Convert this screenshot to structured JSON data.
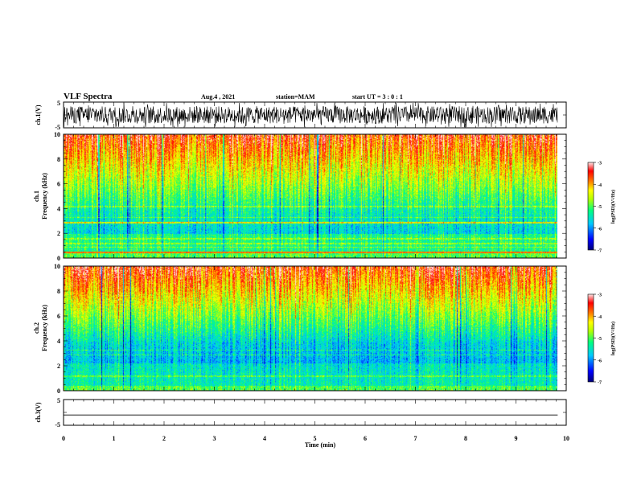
{
  "chart_data": {
    "type": "heatmap",
    "title": "VLF Spectra",
    "header": {
      "date": "Aug.4 , 2021",
      "station": "station=MAM",
      "start_ut": "start UT = 3 : 0 : 1"
    },
    "x_axis": {
      "label": "Time (min)",
      "range": [
        0,
        10
      ],
      "ticks": [
        0,
        1,
        2,
        3,
        4,
        5,
        6,
        7,
        8,
        9,
        10
      ],
      "tick_labels": [
        "0",
        "1",
        "2",
        "3",
        "4",
        "5",
        "6",
        "7",
        "8",
        "9",
        "10"
      ],
      "data_end": 9.83
    },
    "panels": [
      {
        "id": "ch1-waveform",
        "type": "line",
        "ylabel": "ch.1(V)",
        "ylim": [
          -5,
          5
        ],
        "tick_labels": [
          "5",
          "-5"
        ],
        "description_values": {
          "baseline": 0,
          "amplitude": 4.5
        }
      },
      {
        "id": "ch1-spectrogram",
        "type": "heatmap",
        "ylabel_line1": "ch.1",
        "ylabel_line2": "Frequency (kHz)",
        "ylim": [
          0,
          10
        ],
        "ticks": [
          0,
          2,
          4,
          6,
          8,
          10
        ],
        "tick_labels": [
          "0",
          "2",
          "4",
          "6",
          "8",
          "10"
        ],
        "lines_khz": [
          0.5,
          0.9,
          1.2,
          1.6,
          2.9,
          3.3,
          4.2
        ],
        "strong_lines_khz": [
          0.5,
          2.9
        ]
      },
      {
        "id": "ch2-spectrogram",
        "type": "heatmap",
        "ylabel_line1": "ch.2",
        "ylabel_line2": "Frequency (kHz)",
        "ylim": [
          0,
          10
        ],
        "ticks": [
          0,
          2,
          4,
          6,
          8,
          10
        ],
        "tick_labels": [
          "0",
          "2",
          "4",
          "6",
          "8",
          "10"
        ],
        "lines_khz": [
          1.2,
          2.9,
          3.3
        ],
        "strong_lines_khz": []
      },
      {
        "id": "ch3-waveform",
        "type": "line",
        "ylabel": "ch.3(V)",
        "ylim": [
          -5,
          5
        ],
        "tick_labels": [
          "5",
          "-5"
        ],
        "description_values": {
          "baseline": -1,
          "amplitude": 0
        }
      }
    ],
    "colorbars": [
      {
        "label": "log(PSD)(V²/Hz)",
        "range": [
          -7,
          -3
        ],
        "ticks": [
          -3,
          -4,
          -5,
          -6,
          -7
        ],
        "tick_labels": [
          "-3",
          "-4",
          "-5",
          "-6",
          "-7"
        ]
      },
      {
        "label": "log(PSD)(V²/Hz)",
        "range": [
          -7,
          -3
        ],
        "ticks": [
          -3,
          -4,
          -5,
          -6,
          -7
        ],
        "tick_labels": [
          "-3",
          "-4",
          "-5",
          "-6",
          "-7"
        ]
      }
    ],
    "colorscale": [
      "#000078",
      "#0000ff",
      "#00c8ff",
      "#00ff80",
      "#b4ff00",
      "#ffff00",
      "#ff8000",
      "#ff0000",
      "#ffe6e6"
    ]
  }
}
